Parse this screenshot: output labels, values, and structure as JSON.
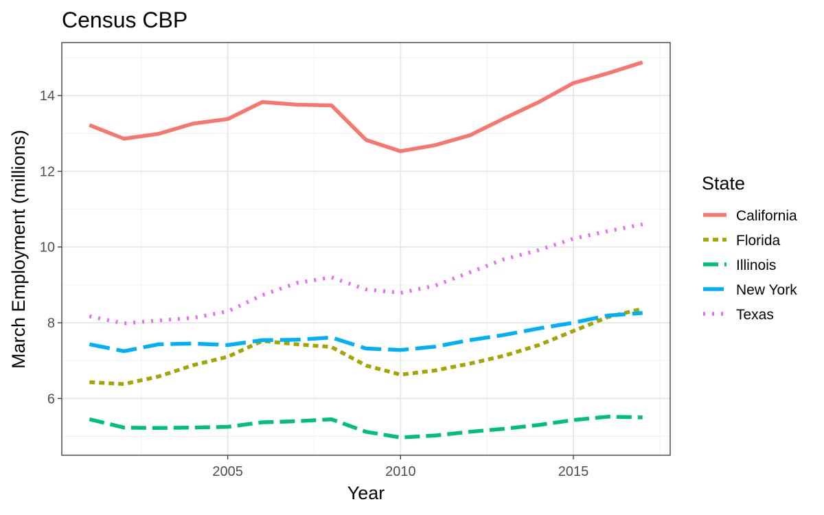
{
  "chart_data": {
    "type": "line",
    "title": "Census CBP",
    "xlabel": "Year",
    "ylabel": "March Employment (millions)",
    "xlim": [
      2000.2,
      2017.8
    ],
    "ylim": [
      4.5,
      15.4
    ],
    "x_ticks": [
      2005,
      2010,
      2015
    ],
    "y_ticks": [
      6,
      8,
      10,
      12,
      14
    ],
    "grid": true,
    "legend": {
      "title": "State",
      "position": "right"
    },
    "x": [
      2001,
      2002,
      2003,
      2004,
      2005,
      2006,
      2007,
      2008,
      2009,
      2010,
      2011,
      2012,
      2013,
      2014,
      2015,
      2016,
      2017
    ],
    "series": [
      {
        "name": "California",
        "color": "#F8766D",
        "dash": "solid",
        "values": [
          13.22,
          12.86,
          12.99,
          13.26,
          13.38,
          13.83,
          13.76,
          13.74,
          12.83,
          12.53,
          12.69,
          12.95,
          13.4,
          13.83,
          14.33,
          14.59,
          14.88
        ]
      },
      {
        "name": "Florida",
        "color": "#A3A500",
        "dash": "dashed",
        "values": [
          6.43,
          6.38,
          6.58,
          6.88,
          7.1,
          7.52,
          7.43,
          7.36,
          6.87,
          6.63,
          6.74,
          6.92,
          7.13,
          7.41,
          7.78,
          8.15,
          8.37
        ]
      },
      {
        "name": "Illinois",
        "color": "#00BF7D",
        "dash": "longdash",
        "values": [
          5.45,
          5.23,
          5.22,
          5.23,
          5.25,
          5.37,
          5.4,
          5.45,
          5.12,
          4.97,
          5.02,
          5.12,
          5.2,
          5.3,
          5.43,
          5.52,
          5.5
        ]
      },
      {
        "name": "New York",
        "color": "#00B0F6",
        "dash": "longdash2",
        "values": [
          7.43,
          7.25,
          7.43,
          7.45,
          7.41,
          7.54,
          7.55,
          7.61,
          7.32,
          7.28,
          7.37,
          7.54,
          7.68,
          7.85,
          8.0,
          8.19,
          8.26
        ]
      },
      {
        "name": "Texas",
        "color": "#E76BF3",
        "dash": "dotted",
        "values": [
          8.17,
          7.98,
          8.06,
          8.13,
          8.3,
          8.73,
          9.05,
          9.2,
          8.88,
          8.79,
          8.98,
          9.33,
          9.68,
          9.92,
          10.22,
          10.42,
          10.6
        ]
      }
    ]
  }
}
